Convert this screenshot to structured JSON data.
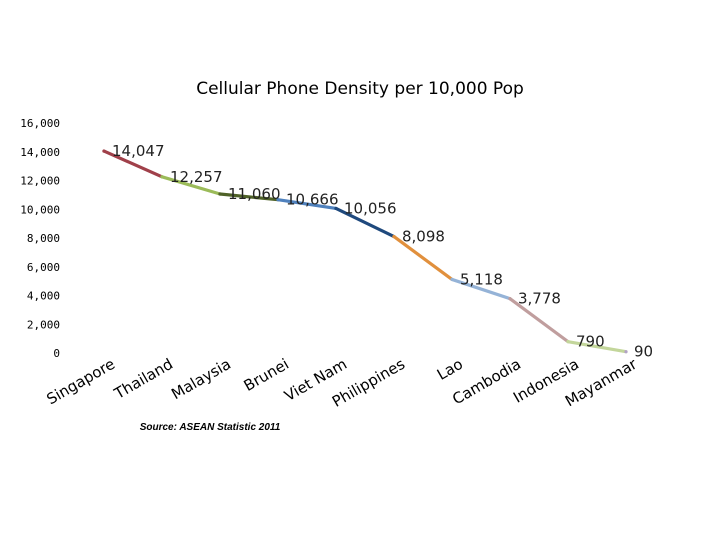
{
  "chart_data": {
    "type": "line",
    "title": "Cellular Phone Density per 10,000 Pop",
    "source": "Source: ASEAN Statistic 2011",
    "categories": [
      "Singapore",
      "Thailand",
      "Malaysia",
      "Brunei",
      "Viet Nam",
      "Philippines",
      "Lao",
      "Cambodia",
      "Indonesia",
      "Mayanmar"
    ],
    "values": [
      14047,
      12257,
      11060,
      10666,
      10056,
      8098,
      5118,
      3778,
      790,
      90
    ],
    "value_labels": [
      "14,047",
      "12,257",
      "11,060",
      "10,666",
      "10,056",
      "8,098",
      "5,118",
      "3,778",
      "790",
      "90"
    ],
    "ylim": [
      0,
      16000
    ],
    "yticks": [
      "0",
      "2,000",
      "4,000",
      "6,000",
      "8,000",
      "10,000",
      "12,000",
      "14,000",
      "16,000"
    ],
    "ytick_values": [
      0,
      2000,
      4000,
      6000,
      8000,
      10000,
      12000,
      14000,
      16000
    ],
    "segment_colors": [
      "#a0404a",
      "#9bbb59",
      "#4f6228",
      "#4f81bd",
      "#1f497d",
      "#e1903d",
      "#95b3d7",
      "#c09e9e",
      "#c3d69b",
      "#b3a2c7"
    ],
    "grid": false,
    "legend": "none",
    "xlabel": "",
    "ylabel": ""
  }
}
